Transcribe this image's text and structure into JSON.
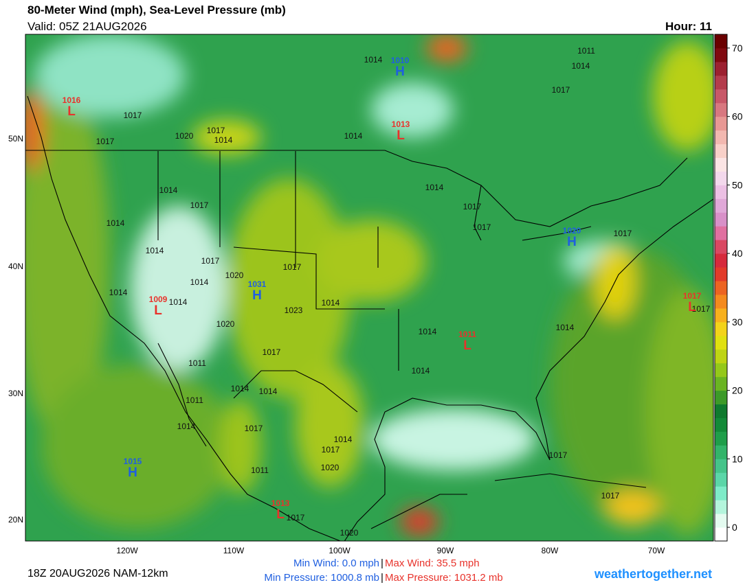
{
  "header": {
    "title": "80-Meter Wind (mph), Sea-Level Pressure (mb)",
    "valid": "Valid: 05Z 21AUG2026",
    "hour": "Hour: 11"
  },
  "map": {
    "lat_labels": [
      "50N",
      "40N",
      "30N",
      "20N"
    ],
    "lon_labels": [
      "120W",
      "110W",
      "100W",
      "90W",
      "80W",
      "70W"
    ],
    "pressure_centers": [
      {
        "letter": "L",
        "value": 1016,
        "color": "#e8322b"
      },
      {
        "letter": "H",
        "value": 1010,
        "color": "#1f5fe0"
      },
      {
        "letter": "L",
        "value": 1013,
        "color": "#e8322b"
      },
      {
        "letter": "H",
        "value": 1020,
        "color": "#1f5fe0"
      },
      {
        "letter": "L",
        "value": 1017,
        "color": "#e8322b"
      },
      {
        "letter": "L",
        "value": 1009,
        "color": "#e8322b"
      },
      {
        "letter": "H",
        "value": 1031,
        "color": "#1f5fe0"
      },
      {
        "letter": "L",
        "value": 1011,
        "color": "#e8322b"
      },
      {
        "letter": "H",
        "value": 1015,
        "color": "#1f5fe0"
      },
      {
        "letter": "L",
        "value": 1013,
        "color": "#e8322b"
      }
    ],
    "isobar_labels": [
      1014,
      1011,
      1014,
      1017,
      1017,
      1017,
      1020,
      1017,
      1014,
      1014,
      1014,
      1017,
      1017,
      1017,
      1014,
      1017,
      1014,
      1014,
      1017,
      1014,
      1020,
      1017,
      1014,
      1014,
      1014,
      1023,
      1014,
      1014,
      1020,
      1017,
      1011,
      1014,
      1014,
      1014,
      1011,
      1014,
      1017,
      1014,
      1017,
      1020,
      1011,
      1017,
      1017,
      1017,
      1020,
      1017
    ]
  },
  "colorbar": {
    "lim": [
      -2,
      72
    ],
    "ticks": [
      0,
      10,
      20,
      30,
      40,
      50,
      60,
      70
    ],
    "colors": [
      "#ffffff",
      "#e4fbf0",
      "#b4f5dc",
      "#7eebc8",
      "#5bd6a8",
      "#45c48a",
      "#33b46a",
      "#1f9e4a",
      "#138a38",
      "#0f7a2e",
      "#3c9a28",
      "#6ab422",
      "#94c81a",
      "#bed414",
      "#e0e010",
      "#f3d31a",
      "#f7b01d",
      "#f48a1e",
      "#ec6422",
      "#e23b2a",
      "#d62a3c",
      "#d94862",
      "#e070a0",
      "#d890c8",
      "#e0a8d8",
      "#ecc0e4",
      "#f3d8ec",
      "#fbe4e4",
      "#f8d0c8",
      "#f2b8b0",
      "#e89894",
      "#d87880",
      "#c85868",
      "#b43c4c",
      "#9c2030",
      "#800a10",
      "#6a0000"
    ]
  },
  "footer": {
    "model": "18Z 20AUG2026 NAM-12km",
    "min_wind": "Min Wind:   0.0 mph",
    "max_wind": "Max Wind: 35.5 mph",
    "min_pressure": "Min Pressure: 1000.8 mb",
    "max_pressure": "Max Pressure: 1031.2 mb",
    "separator": "|",
    "site": "weathertogether.net"
  }
}
